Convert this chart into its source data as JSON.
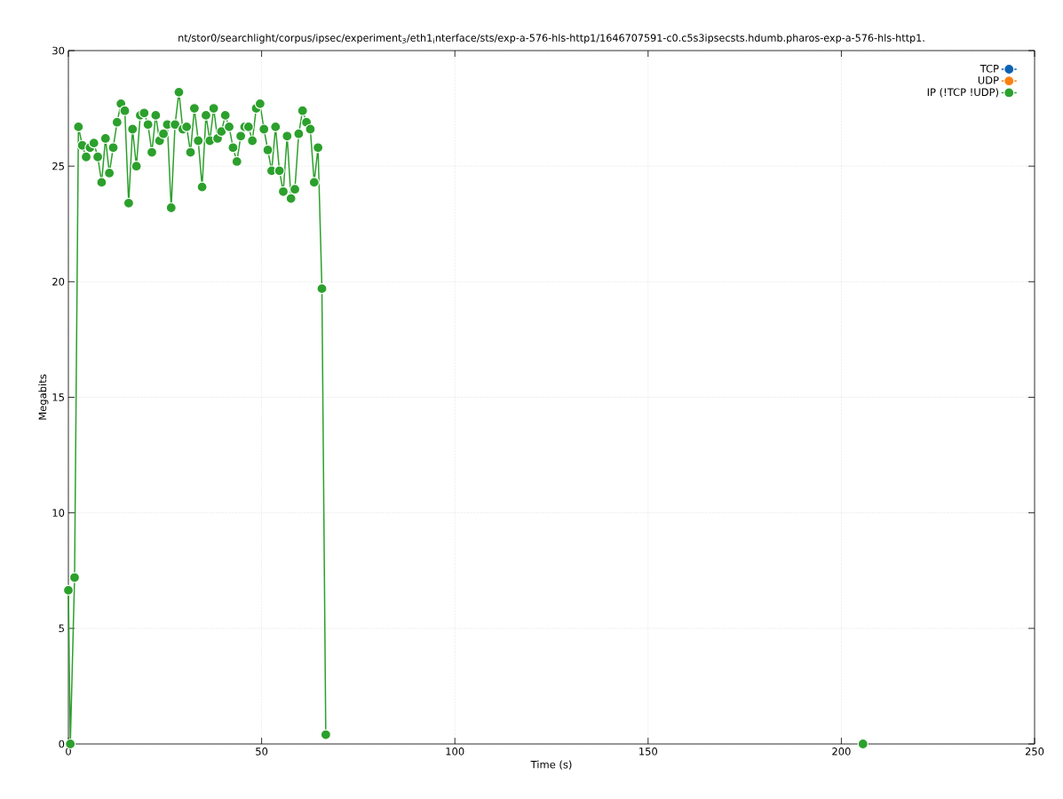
{
  "chart_data": {
    "type": "line",
    "title": "nt/stor0/searchlight/corpus/ipsec/experiment$_{3}$/eth1$_{i}$nterface/sts/exp-a-576-hls-http1/1646707591-c0.c5s3ipsecsts.hdumb.pharos-exp-a-576-hls-http1.",
    "xlabel": "Time (s)",
    "ylabel": "Megabits",
    "xlim": [
      0,
      250
    ],
    "ylim": [
      0,
      30
    ],
    "xticks": [
      0,
      50,
      100,
      150,
      200,
      250
    ],
    "yticks": [
      0,
      5,
      10,
      15,
      20,
      25,
      30
    ],
    "grid": true,
    "legend": "top right",
    "marker": "circle",
    "line_style": "solid",
    "series": [
      {
        "name": "TCP",
        "color": "#0b62b3"
      },
      {
        "name": "UDP",
        "color": "#ff7f0e"
      },
      {
        "name": "IP (!TCP  !UDP)",
        "color": "#2ca02c",
        "x": [
          0,
          0.5,
          1.6,
          2.6,
          3.6,
          4.6,
          5.6,
          6.6,
          7.6,
          8.6,
          9.6,
          10.6,
          11.6,
          12.6,
          13.6,
          14.6,
          15.6,
          16.6,
          17.6,
          18.6,
          19.6,
          20.6,
          21.6,
          22.6,
          23.6,
          24.6,
          25.6,
          26.6,
          27.6,
          28.6,
          29.6,
          30.6,
          31.6,
          32.6,
          33.6,
          34.6,
          35.6,
          36.6,
          37.6,
          38.6,
          39.6,
          40.6,
          41.6,
          42.6,
          43.6,
          44.6,
          45.6,
          46.6,
          47.6,
          48.6,
          49.6,
          50.6,
          51.6,
          52.6,
          53.6,
          54.6,
          55.6,
          56.6,
          57.6,
          58.6,
          59.6,
          60.6,
          61.6,
          62.6,
          63.6,
          64.6,
          65.6,
          66.6,
          136,
          205.6
        ],
        "values": [
          6.65,
          0,
          7.2,
          26.7,
          25.9,
          25.4,
          25.8,
          26.0,
          25.4,
          24.3,
          26.2,
          24.7,
          25.8,
          26.9,
          27.7,
          27.4,
          23.4,
          26.6,
          25.0,
          27.2,
          27.3,
          26.8,
          25.6,
          27.2,
          26.1,
          26.4,
          26.8,
          23.2,
          26.8,
          28.2,
          26.6,
          26.7,
          25.6,
          27.5,
          26.1,
          24.1,
          27.2,
          26.1,
          27.5,
          26.2,
          26.5,
          27.2,
          26.7,
          25.8,
          25.2,
          26.3,
          26.7,
          26.7,
          26.1,
          27.5,
          27.7,
          26.6,
          25.7,
          24.8,
          26.7,
          24.8,
          23.9,
          26.3,
          23.6,
          24.0,
          26.4,
          27.4,
          26.9,
          26.6,
          24.3,
          25.8,
          19.7,
          0.4,
          null,
          0
        ]
      }
    ]
  }
}
